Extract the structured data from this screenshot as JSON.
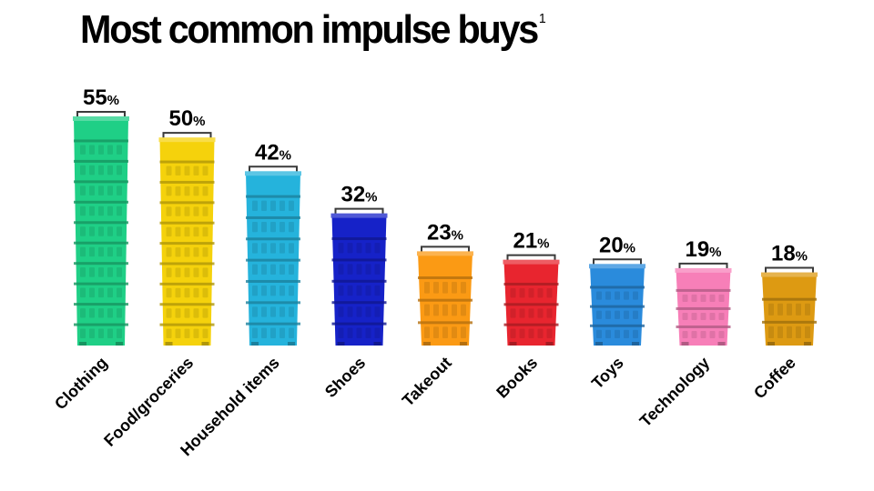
{
  "title": "Most common impulse buys",
  "title_footnote": "1",
  "chart_data": {
    "type": "bar",
    "title": "Most common impulse buys",
    "xlabel": "",
    "ylabel": "",
    "ylim": [
      0,
      55
    ],
    "value_suffix": "%",
    "grid": false,
    "categories": [
      "Clothing",
      "Food/groceries",
      "Household items",
      "Shoes",
      "Takeout",
      "Books",
      "Toys",
      "Technology",
      "Coffee"
    ],
    "values": [
      55,
      50,
      42,
      32,
      23,
      21,
      20,
      19,
      18
    ],
    "colors": [
      "#1fcf86",
      "#f5d20c",
      "#25b3dc",
      "#1622c8",
      "#fb9a14",
      "#e8252f",
      "#2a8bdc",
      "#f77fb8",
      "#dd9a12"
    ]
  }
}
